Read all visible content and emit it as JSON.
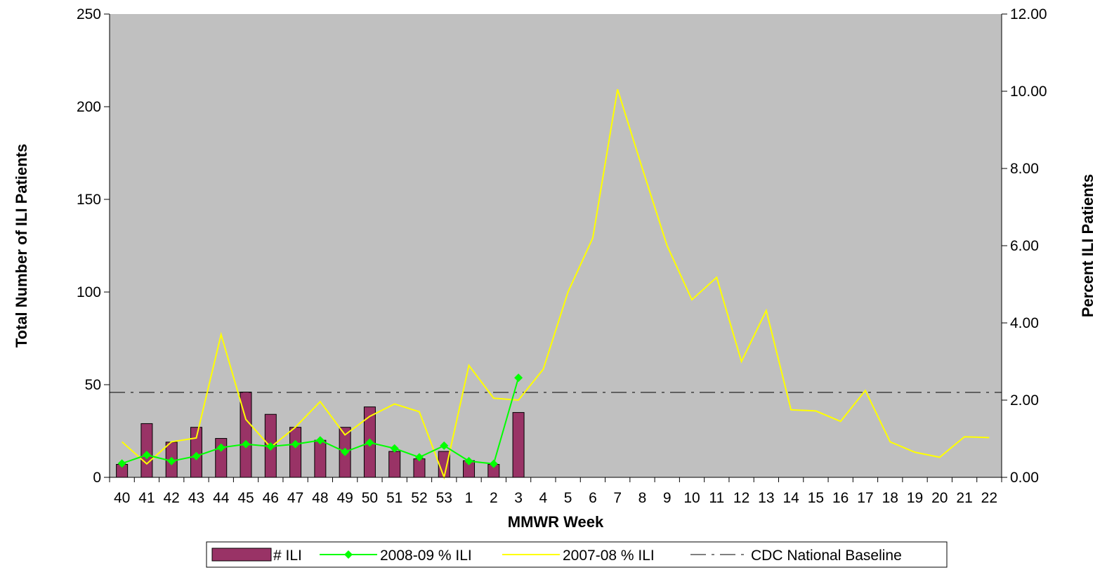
{
  "chart_data": {
    "type": "bar+line",
    "xlabel": "MMWR Week",
    "ylabel_left": "Total Number of ILI Patients",
    "ylabel_right": "Percent ILI Patients",
    "categories": [
      "40",
      "41",
      "42",
      "43",
      "44",
      "45",
      "46",
      "47",
      "48",
      "49",
      "50",
      "51",
      "52",
      "53",
      "1",
      "2",
      "3",
      "4",
      "5",
      "6",
      "7",
      "8",
      "9",
      "10",
      "11",
      "12",
      "13",
      "14",
      "15",
      "16",
      "17",
      "18",
      "19",
      "20",
      "21",
      "22"
    ],
    "left_axis": {
      "min": 0,
      "max": 250,
      "ticks": [
        "0",
        "50",
        "100",
        "150",
        "200",
        "250"
      ]
    },
    "right_axis": {
      "min": 0,
      "max": 12,
      "ticks": [
        "0.00",
        "2.00",
        "4.00",
        "6.00",
        "8.00",
        "10.00",
        "12.00"
      ]
    },
    "grid": false,
    "plot_background": "#c0c0c0",
    "legend_position": "bottom",
    "series": [
      {
        "name": "# ILI",
        "kind": "bar",
        "axis": "left",
        "color": "#993366",
        "values": [
          7,
          29,
          19,
          27,
          21,
          46,
          34,
          27,
          20,
          27,
          38,
          14,
          10,
          14,
          9,
          7,
          35,
          null,
          null,
          null,
          null,
          null,
          null,
          null,
          null,
          null,
          null,
          null,
          null,
          null,
          null,
          null,
          null,
          null,
          null,
          null
        ]
      },
      {
        "name": "2008-09 % ILI",
        "kind": "line-marker",
        "axis": "right",
        "color": "#00ff00",
        "values": [
          0.36,
          0.58,
          0.42,
          0.55,
          0.77,
          0.86,
          0.8,
          0.86,
          0.96,
          0.66,
          0.9,
          0.75,
          0.52,
          0.82,
          0.42,
          0.35,
          2.58,
          null,
          null,
          null,
          null,
          null,
          null,
          null,
          null,
          null,
          null,
          null,
          null,
          null,
          null,
          null,
          null,
          null,
          null,
          null
        ]
      },
      {
        "name": "2007-08 % ILI",
        "kind": "line",
        "axis": "right",
        "color": "#ffff00",
        "values": [
          0.92,
          0.35,
          0.92,
          1.02,
          3.7,
          1.5,
          0.78,
          1.3,
          1.96,
          1.1,
          1.58,
          1.9,
          1.7,
          0.0,
          2.9,
          2.05,
          2.0,
          2.8,
          4.8,
          6.2,
          10.05,
          8.0,
          6.0,
          4.6,
          5.18,
          3.0,
          4.32,
          1.75,
          1.72,
          1.45,
          2.25,
          0.92,
          0.65,
          0.52,
          1.05,
          1.03
        ]
      },
      {
        "name": "CDC National Baseline",
        "kind": "dash",
        "axis": "right",
        "color": "#000000",
        "value": 2.2
      }
    ]
  }
}
